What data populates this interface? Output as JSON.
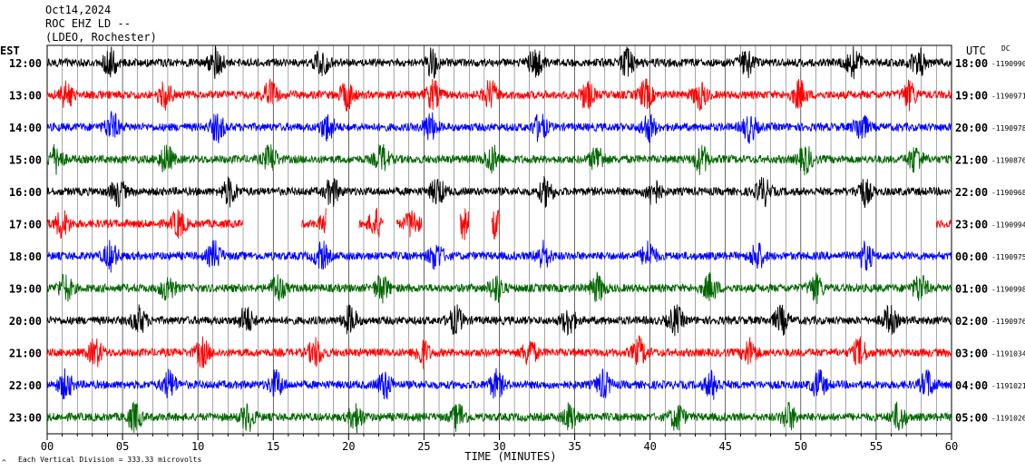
{
  "header": {
    "date": "Oct14,2024",
    "station": "ROC EHZ LD --",
    "network": "(LDEO, Rochester)"
  },
  "chart_data": {
    "type": "line",
    "title": "Oct14,2024",
    "subtitle": "ROC EHZ LD -- (LDEO, Rochester)",
    "xlabel": "TIME (MINUTES)",
    "xlim": [
      0,
      60
    ],
    "x_ticks": [
      "00",
      "05",
      "10",
      "15",
      "20",
      "25",
      "30",
      "35",
      "40",
      "45",
      "50",
      "55",
      "60"
    ],
    "left_axis_label": "EST",
    "right_axis_label": "UTC",
    "dc_label": "DC",
    "scale_note": "Each Vertical Division =  333.33 microvolts",
    "corner_mark": "^",
    "grid": true,
    "colors": [
      "#000000",
      "#ff0000",
      "#0000ff",
      "#006600"
    ],
    "rows": [
      {
        "est": "12:00",
        "utc": "18:00",
        "dc": "-1190990",
        "color": "#000000",
        "bursts": [
          4.2,
          11.2,
          18.2,
          25.6,
          32.4,
          38.5,
          46.4,
          53.5,
          57.8
        ]
      },
      {
        "est": "13:00",
        "utc": "19:00",
        "dc": "-1190971",
        "color": "#ff0000",
        "bursts": [
          1.3,
          7.8,
          14.8,
          19.9,
          25.6,
          29.4,
          35.8,
          39.7,
          43.3,
          49.9,
          57.2
        ]
      },
      {
        "est": "14:00",
        "utc": "20:00",
        "dc": "-1190978",
        "color": "#0000ff",
        "bursts": [
          4.3,
          11.3,
          18.6,
          25.4,
          32.7,
          39.9,
          46.6,
          54.0
        ]
      },
      {
        "est": "15:00",
        "utc": "21:00",
        "dc": "-1190876",
        "color": "#006600",
        "bursts": [
          0.6,
          7.9,
          14.8,
          22.2,
          29.5,
          36.5,
          43.4,
          50.3,
          57.6
        ]
      },
      {
        "est": "16:00",
        "utc": "22:00",
        "dc": "-1190968",
        "color": "#000000",
        "bursts": [
          4.7,
          12.1,
          18.9,
          25.9,
          33.1,
          40.2,
          47.5,
          54.2
        ]
      },
      {
        "est": "17:00",
        "utc": "23:00",
        "dc": "-1190994",
        "color": "#ff0000",
        "bursts": [
          1.0,
          8.7,
          18.6,
          21.8,
          24.2,
          27.7,
          29.7
        ],
        "segments": [
          [
            0,
            13
          ],
          [
            16.9,
            18.5
          ],
          [
            20.7,
            22.3
          ],
          [
            23.2,
            24.9
          ],
          [
            27.4,
            28.0
          ],
          [
            29.5,
            30.0
          ],
          [
            59.0,
            60.0
          ]
        ]
      },
      {
        "est": "18:00",
        "utc": "00:00",
        "dc": "-1190975",
        "color": "#0000ff",
        "bursts": [
          4.2,
          11.1,
          18.2,
          25.8,
          32.9,
          39.9,
          47.1,
          54.3
        ]
      },
      {
        "est": "19:00",
        "utc": "01:00",
        "dc": "-1190998",
        "color": "#006600",
        "bursts": [
          1.2,
          8.0,
          15.3,
          22.2,
          29.8,
          36.5,
          44.0,
          51.0,
          57.9
        ]
      },
      {
        "est": "20:00",
        "utc": "02:00",
        "dc": "-1190976",
        "color": "#000000",
        "bursts": [
          6.1,
          13.2,
          20.1,
          27.1,
          34.6,
          41.7,
          48.7,
          55.9
        ]
      },
      {
        "est": "21:00",
        "utc": "03:00",
        "dc": "-1191034",
        "color": "#ff0000",
        "bursts": [
          3.2,
          10.3,
          17.8,
          24.9,
          32.0,
          39.3,
          46.6,
          53.9
        ]
      },
      {
        "est": "22:00",
        "utc": "04:00",
        "dc": "-1191021",
        "color": "#0000ff",
        "bursts": [
          1.2,
          8.1,
          15.2,
          22.4,
          29.8,
          36.9,
          44.1,
          51.2,
          58.4
        ]
      },
      {
        "est": "23:00",
        "utc": "05:00",
        "dc": "-1191026",
        "color": "#006600",
        "bursts": [
          5.8,
          13.3,
          20.5,
          27.3,
          34.7,
          41.8,
          49.2,
          56.5
        ]
      }
    ]
  }
}
